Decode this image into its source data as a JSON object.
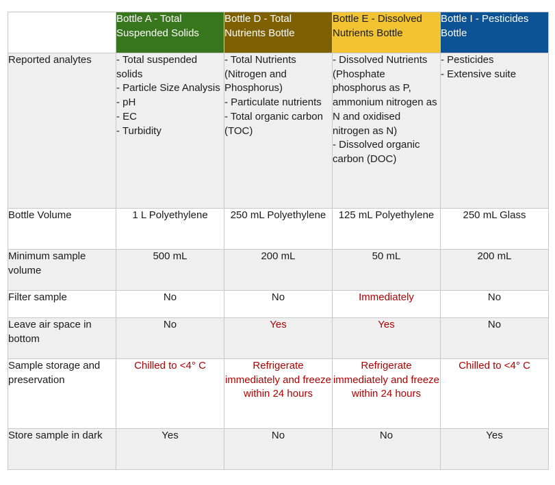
{
  "table": {
    "headers": [
      {
        "label": "Bottle A - Total Suspended Solids",
        "bg": "#38761d",
        "color": "#ffffff"
      },
      {
        "label": "Bottle D - Total Nutrients Bottle",
        "bg": "#7f6000",
        "color": "#ffffff"
      },
      {
        "label": "Bottle E - Dissolved Nutrients Bottle",
        "bg": "#f1c232",
        "color": "#1a1a1a"
      },
      {
        "label": "Bottle I - Pesticides Bottle",
        "bg": "#0b5394",
        "color": "#ffffff"
      }
    ],
    "analytes": {
      "label": "Reported analytes",
      "bottle_a": [
        "- Total suspended solids",
        "- Particle Size Analysis",
        "- pH",
        "- EC",
        "- Turbidity"
      ],
      "bottle_d": [
        "- Total Nutrients (Nitrogen and Phosphorus)",
        "- Particulate nutrients",
        "- Total organic carbon (TOC)"
      ],
      "bottle_e": [
        "- Dissolved Nutrients (Phosphate phosphorus as P, ammonium nitrogen as N and oxidised nitrogen as N)",
        "- Dissolved organic carbon (DOC)"
      ],
      "bottle_i": [
        "- Pesticides",
        "- Extensive suite"
      ]
    },
    "volume": {
      "label": "Bottle Volume",
      "values": [
        "1 L Polyethylene",
        "250 mL Polyethylene",
        "125 mL Polyethylene",
        "250 mL Glass"
      ]
    },
    "min_volume": {
      "label": "Minimum sample volume",
      "values": [
        "500 mL",
        "200 mL",
        "50 mL",
        "200 mL"
      ]
    },
    "filter": {
      "label": "Filter sample",
      "values": [
        "No",
        "No",
        "Immediately",
        "No"
      ]
    },
    "air_space": {
      "label": "Leave air space in bottom",
      "values": [
        "No",
        "Yes",
        "Yes",
        "No"
      ]
    },
    "storage": {
      "label": "Sample storage and preservation",
      "values": [
        "Chilled to <4° C",
        "Refrigerate immediately and freeze within 24 hours",
        "Refrigerate immediately and freeze within 24 hours",
        "Chilled to <4° C"
      ]
    },
    "dark": {
      "label": "Store sample in dark",
      "values": [
        "Yes",
        "No",
        "No",
        "Yes"
      ]
    },
    "highlight_color": "#b00000"
  }
}
